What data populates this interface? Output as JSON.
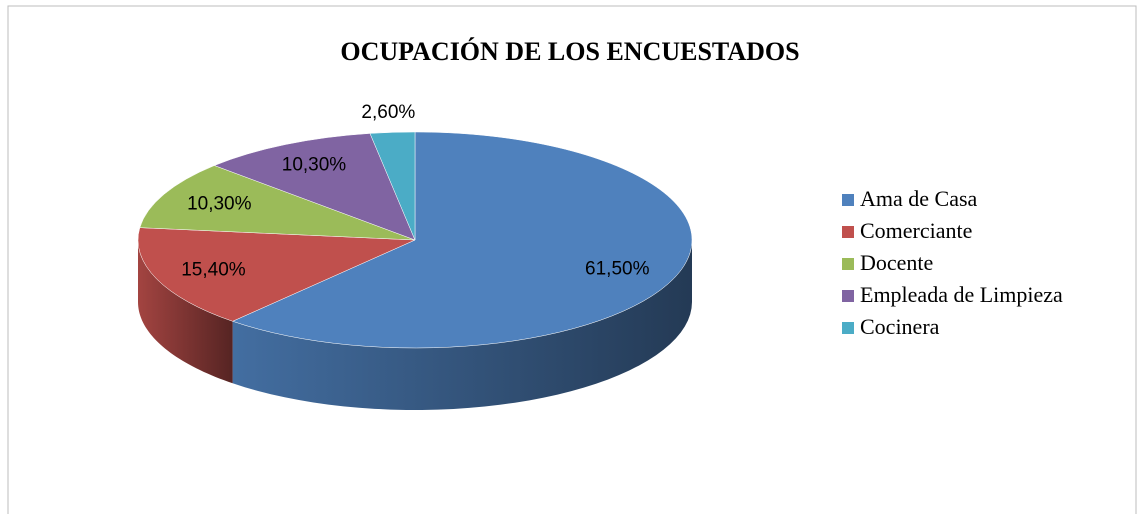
{
  "chart_data": {
    "type": "pie",
    "title": "OCUPACIÓN DE LOS ENCUESTADOS",
    "categories": [
      "Ama de Casa",
      "Comerciante",
      "Docente",
      "Empleada de Limpieza",
      "Cocinera"
    ],
    "values": [
      61.5,
      15.4,
      10.3,
      10.3,
      2.6
    ],
    "value_labels": [
      "61,50%",
      "15,40%",
      "10,30%",
      "10,30%",
      "2,60%"
    ],
    "colors": [
      "#4f81bd",
      "#c0504d",
      "#9bbb59",
      "#8064a2",
      "#4bacc6"
    ],
    "legend": "right"
  }
}
